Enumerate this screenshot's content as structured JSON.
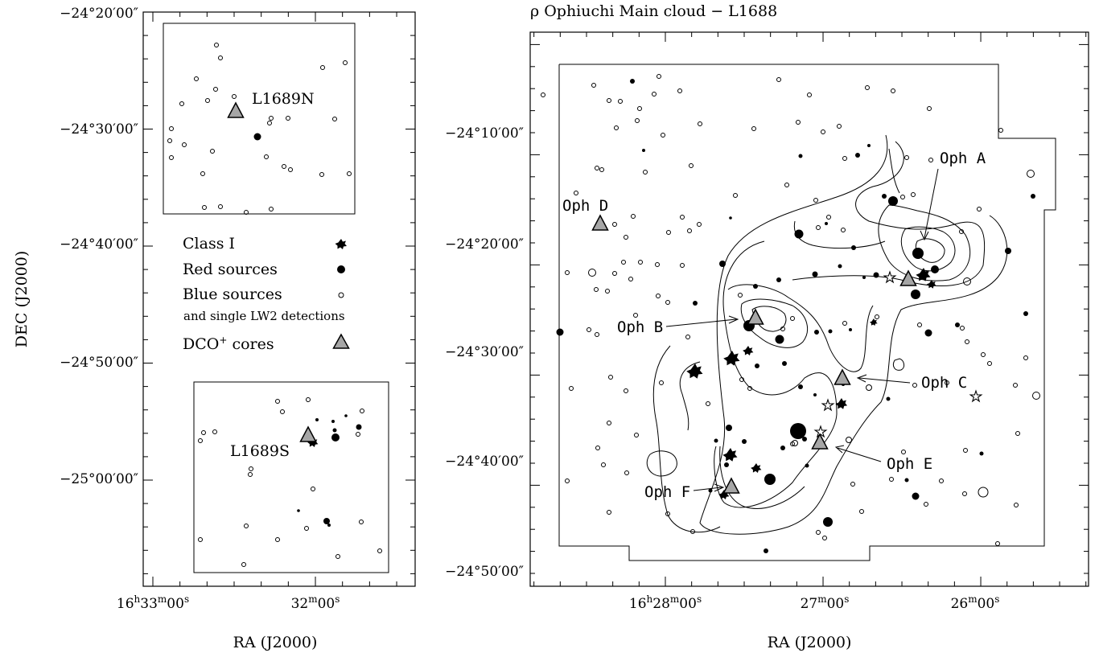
{
  "chart_data": [
    {
      "type": "scatter",
      "title": "",
      "xlabel": "RA (J2000)",
      "ylabel": "DEC (J2000)",
      "x_tick_labels": [
        {
          "h": "16",
          "m": "33",
          "s": "00"
        },
        {
          "h": "",
          "m": "32",
          "s": "00"
        }
      ],
      "y_tick_labels": [
        "−24°20′00″",
        "−24°30′00″",
        "−24°40′00″",
        "−24°50′00″",
        "−25°00′00″"
      ],
      "insets": [
        {
          "name": "L1689N",
          "class_i": [],
          "red": [
            {
              "ra": "16:32:23",
              "dec": "-24:30:35"
            }
          ],
          "dco_cores": [
            {
              "ra": "16:32:29",
              "dec": "-24:28:30"
            }
          ]
        },
        {
          "name": "L1689S",
          "class_i": [
            {
              "ra": "16:31:57",
              "dec": "-24:56:40"
            }
          ],
          "red": [
            {
              "ra": "16:31:52",
              "dec": "-24:56:15"
            },
            {
              "ra": "16:31:54",
              "dec": "-25:03:25"
            }
          ],
          "dco_cores": [
            {
              "ra": "16:32:00",
              "dec": "-24:56:10"
            }
          ]
        }
      ],
      "legend": {
        "placement": "middle",
        "entries": [
          {
            "label": "Class I",
            "marker": "star-filled"
          },
          {
            "label": "Red sources",
            "marker": "circle-filled"
          },
          {
            "label": "Blue sources",
            "marker": "circle-open"
          },
          {
            "label": "and single LW2 detections",
            "marker": "none"
          },
          {
            "label": "DCO",
            "sup": "+",
            "suffix": " cores",
            "marker": "triangle-gray"
          }
        ]
      }
    },
    {
      "type": "scatter",
      "title": "ρ Ophiuchi Main cloud − L1688",
      "xlabel": "RA (J2000)",
      "ylabel": "",
      "x_tick_labels": [
        {
          "h": "16",
          "m": "28",
          "s": "00"
        },
        {
          "h": "",
          "m": "27",
          "s": "00"
        },
        {
          "h": "",
          "m": "26",
          "s": "00"
        }
      ],
      "y_tick_labels": [
        "−24°10′00″",
        "−24°20′00″",
        "−24°30′00″",
        "−24°40′00″",
        "−24°50′00″"
      ],
      "contours": "DCO+ emission contours",
      "cores": [
        {
          "label": "Oph A",
          "ra": "16:26:27",
          "dec": "-24:23:30"
        },
        {
          "label": "Oph B",
          "ra": "16:27:29",
          "dec": "-24:27:10"
        },
        {
          "label": "Oph C",
          "ra": "16:26:58",
          "dec": "-24:32:20"
        },
        {
          "label": "Oph D",
          "ra": "16:28:30",
          "dec": "-24:18:10"
        },
        {
          "label": "Oph E",
          "ra": "16:27:05",
          "dec": "-24:38:30"
        },
        {
          "label": "Oph F",
          "ra": "16:27:40",
          "dec": "-24:42:20"
        }
      ]
    }
  ],
  "colors": {
    "core_fill": "#a6a6a6",
    "ink": "#000000",
    "background": "#ffffff"
  }
}
